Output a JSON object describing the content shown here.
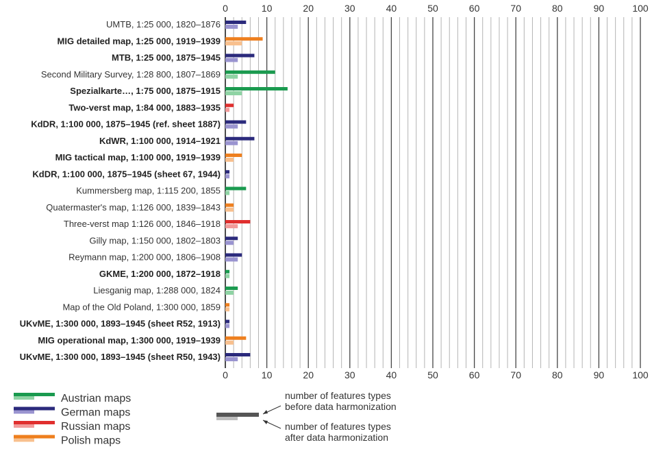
{
  "chart_data": {
    "type": "bar",
    "orientation": "horizontal",
    "xlim": [
      0,
      100
    ],
    "x_ticks": [
      0,
      10,
      20,
      30,
      40,
      50,
      60,
      70,
      80,
      90,
      100
    ],
    "x_tick_labels": [
      "0",
      "10",
      "20",
      "30",
      "40",
      "50",
      "60",
      "70",
      "80",
      "90",
      "100"
    ],
    "x_tick_labels_position": "top and bottom",
    "grid": true,
    "colors": {
      "Austrian": {
        "before": "#1a9a4f",
        "after": "#8fd3a4"
      },
      "German": {
        "before": "#2b2a7c",
        "after": "#9a94d0"
      },
      "Russian": {
        "before": "#e02f2e",
        "after": "#f29b9a"
      },
      "Polish": {
        "before": "#ee7f1e",
        "after": "#f8c08e"
      }
    },
    "categories": [
      {
        "label": "UMTB, 1:25 000, 1820–1876",
        "bold": false,
        "group": "German",
        "before": 5,
        "after": 3
      },
      {
        "label": "MIG detailed map, 1:25 000, 1919–1939",
        "bold": true,
        "group": "Polish",
        "before": 9,
        "after": 4
      },
      {
        "label": "MTB, 1:25 000, 1875–1945",
        "bold": true,
        "group": "German",
        "before": 7,
        "after": 3
      },
      {
        "label": "Second Military Survey, 1:28 800, 1807–1869",
        "bold": false,
        "group": "Austrian",
        "before": 12,
        "after": 3
      },
      {
        "label": "Spezialkarte…, 1:75 000, 1875–1915",
        "bold": true,
        "group": "Austrian",
        "before": 15,
        "after": 4
      },
      {
        "label": "Two-verst map, 1:84 000, 1883–1935",
        "bold": true,
        "group": "Russian",
        "before": 2,
        "after": 1
      },
      {
        "label": "KdDR, 1:100 000, 1875–1945 (ref. sheet 1887)",
        "bold": true,
        "group": "German",
        "before": 5,
        "after": 3
      },
      {
        "label": "KdWR, 1:100 000, 1914–1921",
        "bold": true,
        "group": "German",
        "before": 7,
        "after": 3
      },
      {
        "label": "MIG tactical map, 1:100 000, 1919–1939",
        "bold": true,
        "group": "Polish",
        "before": 4,
        "after": 2
      },
      {
        "label": "KdDR, 1:100 000, 1875–1945 (sheet 67, 1944)",
        "bold": true,
        "group": "German",
        "before": 1,
        "after": 1
      },
      {
        "label": "Kummersberg map, 1:115 200, 1855",
        "bold": false,
        "group": "Austrian",
        "before": 5,
        "after": 1
      },
      {
        "label": "Quatermaster's map, 1:126 000, 1839–1843",
        "bold": false,
        "group": "Polish",
        "before": 2,
        "after": 2
      },
      {
        "label": "Three-verst map 1:126 000, 1846–1918",
        "bold": false,
        "group": "Russian",
        "before": 6,
        "after": 3
      },
      {
        "label": "Gilly map, 1:150 000, 1802–1803",
        "bold": false,
        "group": "German",
        "before": 3,
        "after": 2
      },
      {
        "label": "Reymann map, 1:200 000, 1806–1908",
        "bold": false,
        "group": "German",
        "before": 4,
        "after": 3
      },
      {
        "label": "GKME, 1:200 000, 1872–1918",
        "bold": true,
        "group": "Austrian",
        "before": 1,
        "after": 1
      },
      {
        "label": "Liesganig map, 1:288 000, 1824",
        "bold": false,
        "group": "Austrian",
        "before": 3,
        "after": 2
      },
      {
        "label": "Map of the Old Poland, 1:300 000, 1859",
        "bold": false,
        "group": "Polish",
        "before": 1,
        "after": 1
      },
      {
        "label": "UKvME, 1:300 000, 1893–1945 (sheet R52, 1913)",
        "bold": true,
        "group": "German",
        "before": 1,
        "after": 1
      },
      {
        "label": "MIG operational map, 1:300 000, 1919–1939",
        "bold": true,
        "group": "Polish",
        "before": 5,
        "after": 2
      },
      {
        "label": "UKvME, 1:300 000, 1893–1945 (sheet R50, 1943)",
        "bold": true,
        "group": "German",
        "before": 6,
        "after": 3
      }
    ],
    "legend": {
      "placement": "bottom-left",
      "items": [
        {
          "group": "Austrian",
          "label": "Austrian maps"
        },
        {
          "group": "German",
          "label": "German maps"
        },
        {
          "group": "Russian",
          "label": "Russian maps"
        },
        {
          "group": "Polish",
          "label": "Polish maps"
        }
      ]
    },
    "key": {
      "placement": "bottom-center",
      "before_label_lines": [
        "number of features types",
        "before data harmonization"
      ],
      "after_label_lines": [
        "number of features types",
        "after data harmonization"
      ],
      "before_color": "#555555",
      "after_color": "#bdbdbd"
    }
  }
}
